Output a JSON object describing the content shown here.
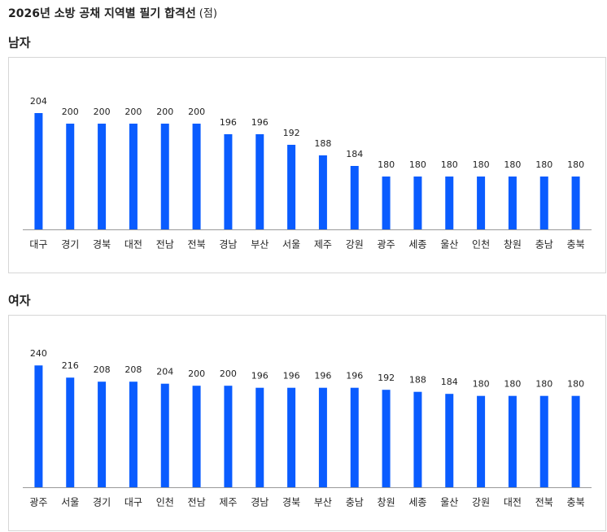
{
  "title": "2026년 소방 공채 지역별 필기 합격선",
  "unit": "(점)",
  "chart_data": [
    {
      "type": "bar",
      "title": "남자",
      "color": "#0a5cff",
      "ylim": [
        160,
        208
      ],
      "categories": [
        "대구",
        "경기",
        "경북",
        "대전",
        "전남",
        "전북",
        "경남",
        "부산",
        "서울",
        "제주",
        "강원",
        "광주",
        "세종",
        "울산",
        "인천",
        "창원",
        "충남",
        "충북"
      ],
      "values": [
        204,
        200,
        200,
        200,
        200,
        200,
        196,
        196,
        192,
        188,
        184,
        180,
        180,
        180,
        180,
        180,
        180,
        180
      ]
    },
    {
      "type": "bar",
      "title": "여자",
      "color": "#0a5cff",
      "ylim": [
        0,
        250
      ],
      "categories": [
        "광주",
        "서울",
        "경기",
        "대구",
        "인천",
        "전남",
        "제주",
        "경남",
        "경북",
        "부산",
        "충남",
        "창원",
        "세종",
        "울산",
        "강원",
        "대전",
        "전북",
        "충북"
      ],
      "values": [
        240,
        216,
        208,
        208,
        204,
        200,
        200,
        196,
        196,
        196,
        196,
        192,
        188,
        184,
        180,
        180,
        180,
        180
      ]
    }
  ]
}
